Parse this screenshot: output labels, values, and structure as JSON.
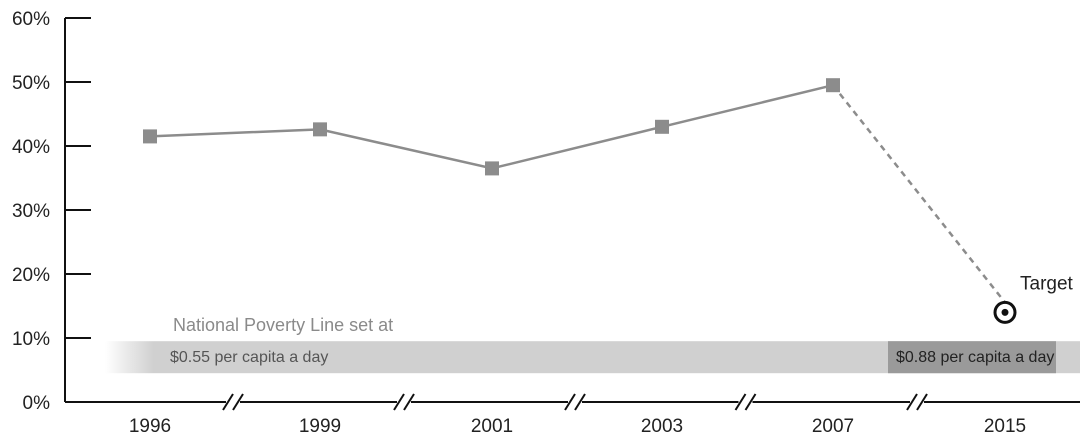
{
  "chart_data": {
    "type": "line",
    "categories": [
      "1996",
      "1999",
      "2001",
      "2003",
      "2007",
      "2015"
    ],
    "series": [
      {
        "values": [
          41.5,
          42.6,
          36.5,
          43.0,
          49.5,
          null
        ]
      }
    ],
    "projection": {
      "from": "2007",
      "to": "2015",
      "from_value": 49.5,
      "to_value": 14.0,
      "style": "dashed"
    },
    "target": {
      "category": "2015",
      "value": 14.0,
      "label": "Target"
    },
    "y_ticks": [
      "0%",
      "10%",
      "20%",
      "30%",
      "40%",
      "50%",
      "60%"
    ],
    "ylim": [
      0,
      60
    ],
    "axis_breaks": true,
    "poverty_line": {
      "note": "National Poverty Line set at",
      "low_label": "$0.55 per capita a day",
      "high_label": "$0.88 per capita a day",
      "band_range": [
        4.5,
        9.5
      ]
    },
    "colors": {
      "line": "#8c8c8c",
      "marker": "#8c8c8c",
      "band_light": "#d0d0d0",
      "band_dark": "#9a9a9a",
      "axis": "#111111"
    }
  }
}
